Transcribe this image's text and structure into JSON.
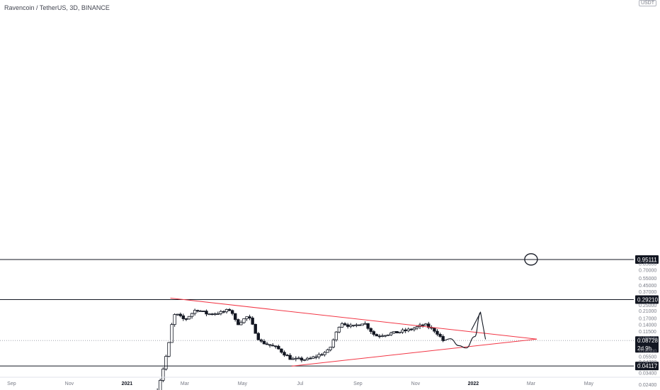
{
  "header": {
    "title": "Ravencoin / TetherUS, 3D, BINANCE",
    "unit": "USDT"
  },
  "colors": {
    "trendline": "#f23645",
    "level": "#131722",
    "candle": "#131722",
    "grid": "#9598a1"
  },
  "chart_data": {
    "type": "candlestick",
    "symbol": "RVN/USDT",
    "interval": "3D",
    "scale": "log",
    "grid": false,
    "y_ticks": [
      0.024,
      0.034,
      0.047,
      0.055,
      0.065,
      0.095,
      0.115,
      0.14,
      0.17,
      0.21,
      0.25,
      0.37,
      0.45,
      0.55,
      0.7,
      0.85
    ],
    "x_ticks": [
      {
        "label": "Sep",
        "month": -4
      },
      {
        "label": "Nov",
        "month": -2
      },
      {
        "label": "2021",
        "month": 0,
        "bold": true
      },
      {
        "label": "Mar",
        "month": 2
      },
      {
        "label": "May",
        "month": 4
      },
      {
        "label": "Jul",
        "month": 6
      },
      {
        "label": "Sep",
        "month": 8
      },
      {
        "label": "Nov",
        "month": 10
      },
      {
        "label": "2022",
        "month": 12,
        "bold": true
      },
      {
        "label": "Mar",
        "month": 14
      },
      {
        "label": "May",
        "month": 16
      }
    ],
    "horizontal_levels": [
      0.95111,
      0.2921,
      0.04117
    ],
    "current_price": {
      "value": 0.08728,
      "countdown": "2d 9h"
    },
    "trendlines": [
      {
        "name": "descending-resistance",
        "from": {
          "month": 1.5,
          "price": 0.305
        },
        "to": {
          "month": 14.2,
          "price": 0.091
        }
      },
      {
        "name": "ascending-support",
        "from": {
          "month": 5.7,
          "price": 0.041
        },
        "to": {
          "month": 14.2,
          "price": 0.091
        }
      }
    ],
    "anchors": [
      {
        "month": 1.05,
        "price": 0.02
      },
      {
        "month": 1.3,
        "price": 0.045
      },
      {
        "month": 1.45,
        "price": 0.08
      },
      {
        "month": 1.6,
        "price": 0.18
      },
      {
        "month": 1.7,
        "price": 0.19
      },
      {
        "month": 2.0,
        "price": 0.16
      },
      {
        "month": 2.4,
        "price": 0.22
      },
      {
        "month": 2.8,
        "price": 0.19
      },
      {
        "month": 3.3,
        "price": 0.2
      },
      {
        "month": 3.6,
        "price": 0.22
      },
      {
        "month": 3.8,
        "price": 0.14
      },
      {
        "month": 4.2,
        "price": 0.18
      },
      {
        "month": 4.6,
        "price": 0.085
      },
      {
        "month": 5.2,
        "price": 0.07
      },
      {
        "month": 5.7,
        "price": 0.05
      },
      {
        "month": 6.3,
        "price": 0.05
      },
      {
        "month": 7.0,
        "price": 0.065
      },
      {
        "month": 7.4,
        "price": 0.15
      },
      {
        "month": 7.8,
        "price": 0.13
      },
      {
        "month": 8.2,
        "price": 0.15
      },
      {
        "month": 8.6,
        "price": 0.1
      },
      {
        "month": 9.3,
        "price": 0.11
      },
      {
        "month": 9.8,
        "price": 0.12
      },
      {
        "month": 10.3,
        "price": 0.14
      },
      {
        "month": 10.7,
        "price": 0.115
      },
      {
        "month": 10.95,
        "price": 0.087
      }
    ],
    "drawings": [
      {
        "name": "projected-path-arrow",
        "points": [
          [
            10.95,
            0.087
          ],
          [
            11.2,
            0.092
          ],
          [
            11.5,
            0.075
          ],
          [
            11.75,
            0.07
          ],
          [
            12.05,
            0.098
          ],
          [
            12.25,
            0.2
          ]
        ]
      },
      {
        "name": "circle-mark",
        "center": {
          "month": 14.0,
          "price": 0.955
        }
      }
    ]
  }
}
